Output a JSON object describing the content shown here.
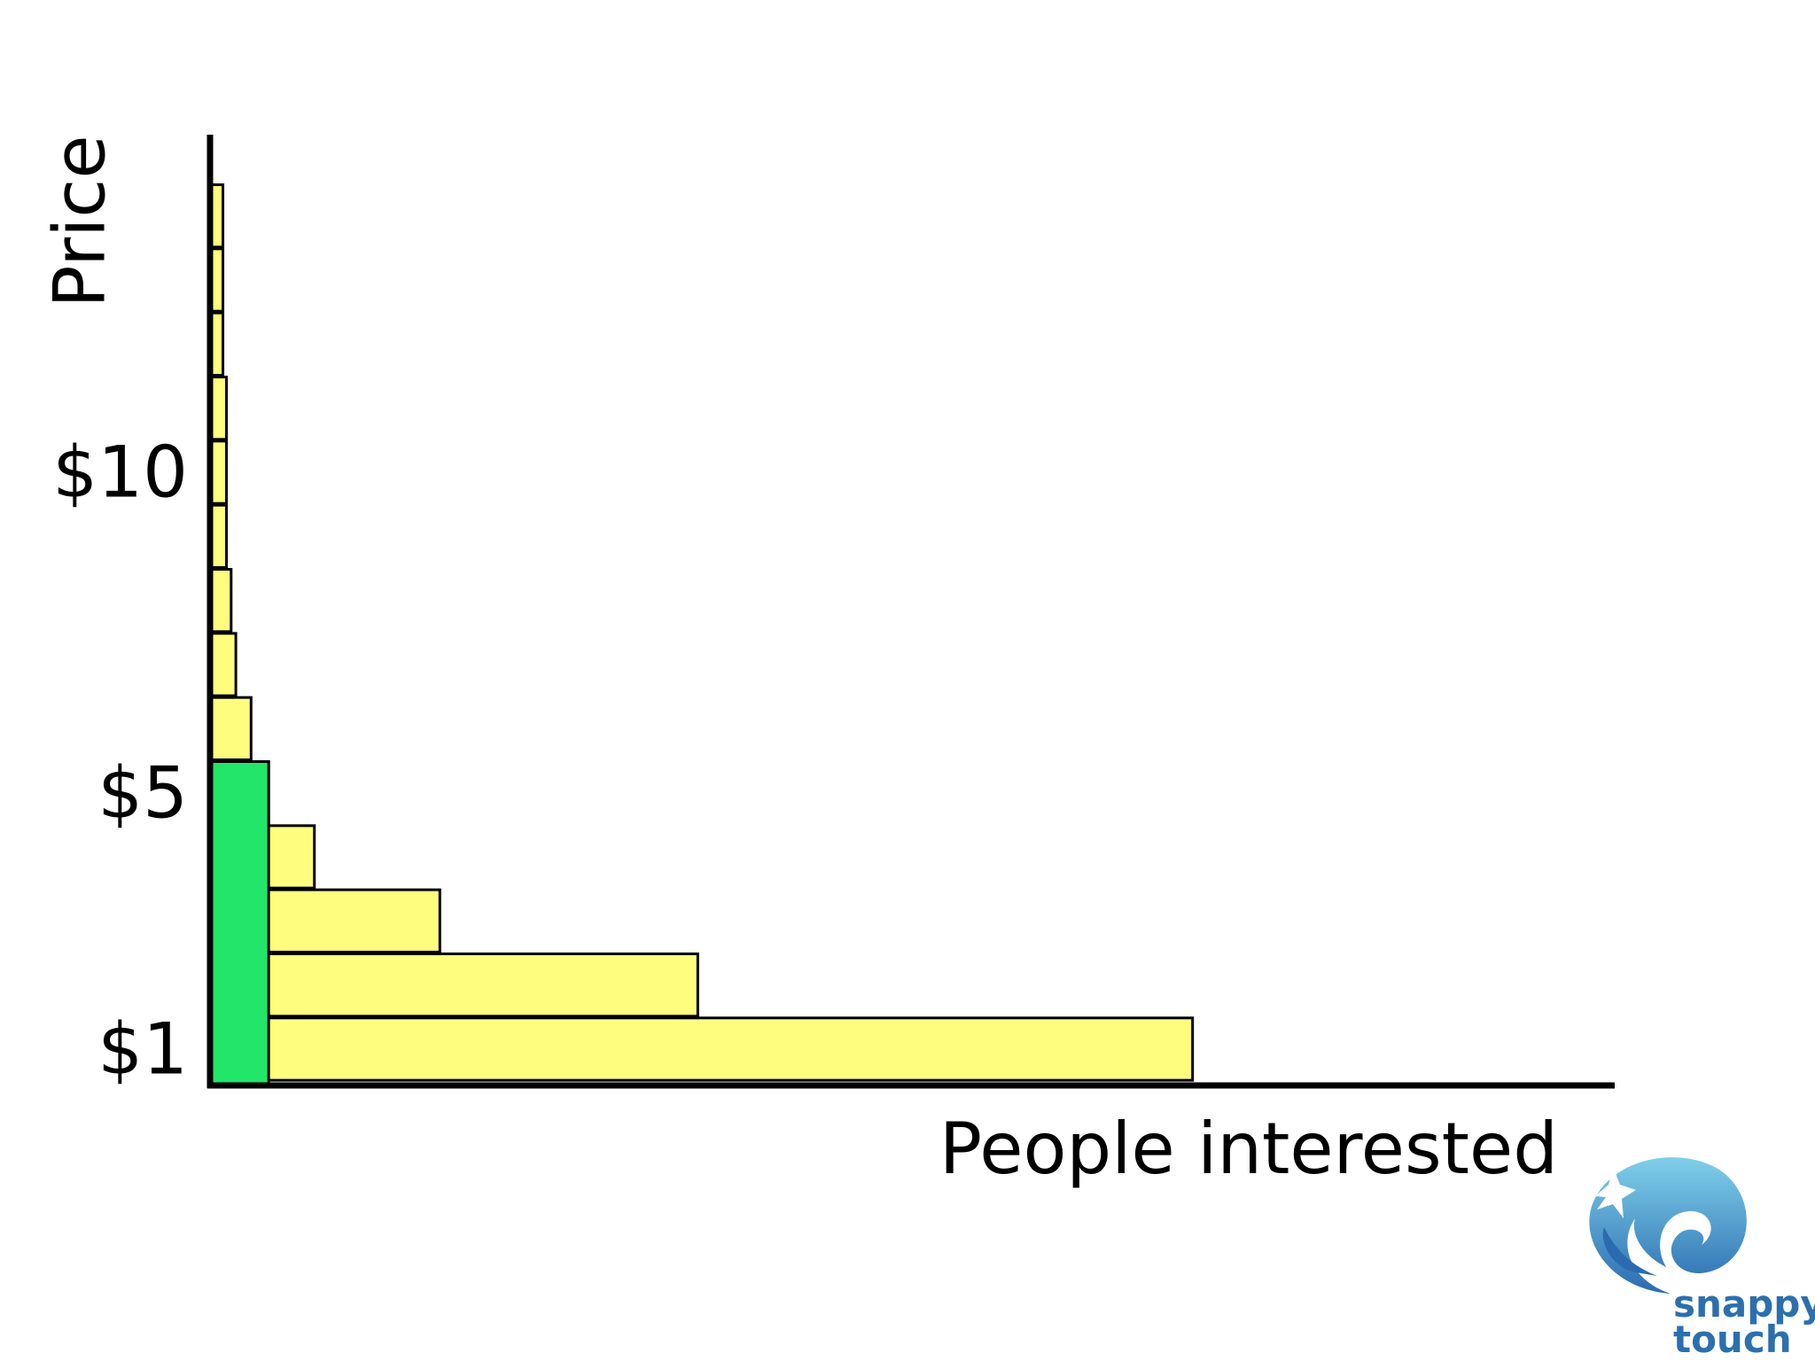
{
  "chart_data": {
    "type": "bar",
    "orientation": "horizontal",
    "xlabel": "People interested",
    "ylabel": "Price",
    "tick_labels": [
      {
        "label": "$1",
        "value": 1
      },
      {
        "label": "$5",
        "value": 5
      },
      {
        "label": "$10",
        "value": 10
      }
    ],
    "y_range": [
      0.5,
      15
    ],
    "x_range": [
      0,
      1000
    ],
    "price_levels": [
      1,
      2,
      3,
      4,
      5,
      6,
      7,
      8,
      9,
      10,
      11,
      12,
      13,
      14
    ],
    "people_interested": [
      838,
      416,
      196,
      89,
      50,
      35,
      22,
      18,
      14,
      14,
      14,
      11,
      11,
      11
    ],
    "highlight": {
      "price_max": 5,
      "people": 50,
      "color": "#22e56a"
    },
    "bar_color": "#fffd7e"
  },
  "logo": {
    "line1": "snappy",
    "line2": "touch"
  }
}
